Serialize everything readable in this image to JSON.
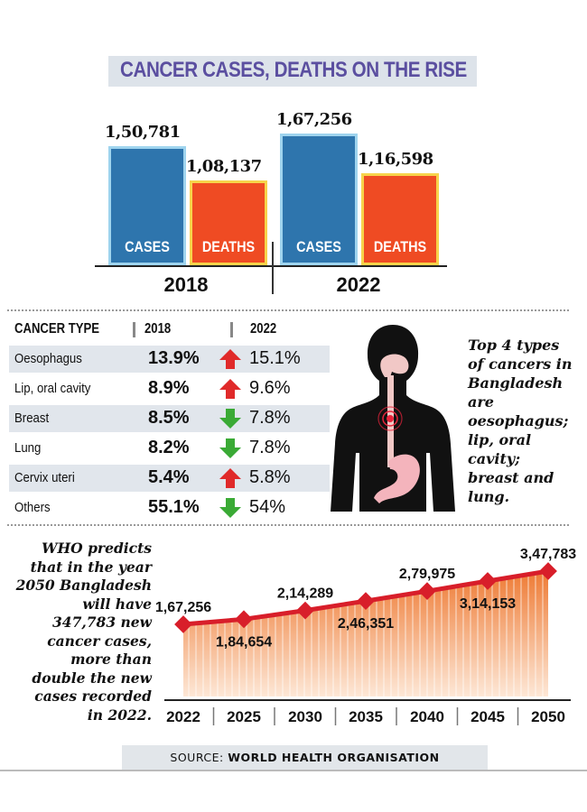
{
  "title": "CANCER CASES, DEATHS ON THE RISE",
  "top_bars": {
    "groups": [
      {
        "year": "2018",
        "cases": {
          "label": "CASES",
          "value_text": "1,50,781",
          "value": 150781
        },
        "deaths": {
          "label": "DEATHS",
          "value_text": "1,08,137",
          "value": 108137
        }
      },
      {
        "year": "2022",
        "cases": {
          "label": "CASES",
          "value_text": "1,67,256",
          "value": 167256
        },
        "deaths": {
          "label": "DEATHS",
          "value_text": "1,16,598",
          "value": 116598
        }
      }
    ],
    "colors": {
      "cases": "#2e75ad",
      "cases_border": "#9fd4ee",
      "deaths": "#ef4b23",
      "deaths_border": "#f7d34b"
    }
  },
  "table": {
    "headers": {
      "type": "CANCER TYPE",
      "y1": "2018",
      "y2": "2022"
    },
    "rows": [
      {
        "type": "Oesophagus",
        "v2018": "13.9%",
        "v2022": "15.1%",
        "trend": "up"
      },
      {
        "type": "Lip, oral cavity",
        "v2018": "8.9%",
        "v2022": "9.6%",
        "trend": "up"
      },
      {
        "type": "Breast",
        "v2018": "8.5%",
        "v2022": "7.8%",
        "trend": "down"
      },
      {
        "type": "Lung",
        "v2018": "8.2%",
        "v2022": "7.8%",
        "trend": "down"
      },
      {
        "type": "Cervix uteri",
        "v2018": "5.4%",
        "v2022": "5.8%",
        "trend": "up"
      },
      {
        "type": "Others",
        "v2018": "55.1%",
        "v2022": "54%",
        "trend": "down"
      }
    ],
    "colors": {
      "up": "#e02a2a",
      "down": "#3aaa35",
      "shade": "#e1e6ec"
    }
  },
  "side_note": "Top 4 types of cancers in Bangladesh are oesophagus; lip, oral cavity; breast and lung.",
  "who_note": "WHO predicts that in the year 2050 Bangladesh will have 347,783 new cancer cases, more than double the new cases recorded in 2022.",
  "chart_data": [
    {
      "type": "bar",
      "categories": [
        "2018",
        "2022"
      ],
      "series": [
        {
          "name": "CASES",
          "values": [
            150781,
            167256
          ]
        },
        {
          "name": "DEATHS",
          "values": [
            108137,
            116598
          ]
        }
      ],
      "title": "CANCER CASES, DEATHS ON THE RISE",
      "data_labels": [
        "1,50,781",
        "1,08,137",
        "1,67,256",
        "1,16,598"
      ],
      "ylim": [
        0,
        167256
      ]
    },
    {
      "type": "area",
      "categories": [
        "2022",
        "2025",
        "2030",
        "2035",
        "2040",
        "2045",
        "2050"
      ],
      "values": [
        167256,
        184654,
        214289,
        246351,
        279975,
        314153,
        347783
      ],
      "data_labels": [
        "1,67,256",
        "1,84,654",
        "2,14,289",
        "2,46,351",
        "2,79,975",
        "3,14,153",
        "3,47,783"
      ],
      "label_position": [
        "above",
        "below",
        "above",
        "below",
        "above",
        "below",
        "above"
      ],
      "ylim": [
        0,
        347783
      ],
      "colors": {
        "line": "#d81e2a",
        "marker": "#d81e2a",
        "fill_top": "#ee7b35",
        "fill_bottom": "#fde7d6"
      }
    }
  ],
  "source": {
    "prefix": "SOURCE: ",
    "name": "WORLD HEALTH ORGANISATION"
  }
}
